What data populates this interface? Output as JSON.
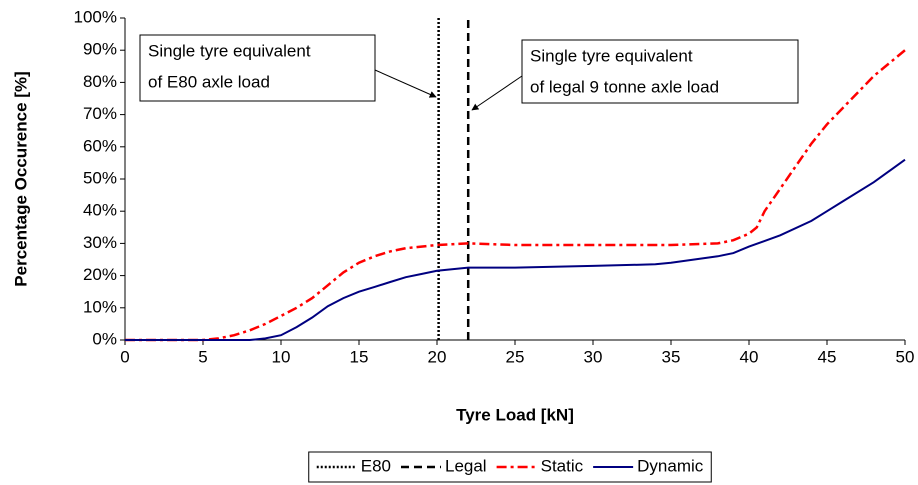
{
  "chart_data": {
    "type": "line",
    "xlabel": "Tyre Load [kN]",
    "ylabel": "Percentage Occurence [%]",
    "xlim": [
      0,
      50
    ],
    "xticks": [
      0,
      5,
      10,
      15,
      20,
      25,
      30,
      35,
      40,
      45,
      50
    ],
    "ylim": [
      0,
      100
    ],
    "yticks": [
      {
        "value": 0,
        "label": "0%"
      },
      {
        "value": 10,
        "label": "10%"
      },
      {
        "value": 20,
        "label": "20%"
      },
      {
        "value": 30,
        "label": "30%"
      },
      {
        "value": 40,
        "label": "40%"
      },
      {
        "value": 50,
        "label": "50%"
      },
      {
        "value": 60,
        "label": "60%"
      },
      {
        "value": 70,
        "label": "70%"
      },
      {
        "value": 80,
        "label": "80%"
      },
      {
        "value": 90,
        "label": "90%"
      },
      {
        "value": 100,
        "label": "100%"
      }
    ],
    "legend": "bottom",
    "series": [
      {
        "name": "E80",
        "color": "#000000",
        "line_style": "dotted",
        "x": [
          20.1,
          20.1
        ],
        "values": [
          0,
          100
        ]
      },
      {
        "name": "Legal",
        "color": "#000000",
        "line_style": "dashed",
        "x": [
          22,
          22
        ],
        "values": [
          0,
          100
        ]
      },
      {
        "name": "Static",
        "color": "#ff0000",
        "line_style": "dashdot",
        "x": [
          0,
          5,
          6,
          7,
          8,
          9,
          10,
          11,
          12,
          13,
          14,
          15,
          16,
          17,
          18,
          19,
          20,
          22,
          25,
          30,
          35,
          38,
          39,
          40,
          40.5,
          41,
          42,
          43,
          44,
          45,
          46,
          47,
          48,
          49,
          50
        ],
        "values": [
          0,
          0,
          0.5,
          1.5,
          3,
          5,
          7.5,
          10,
          13,
          17,
          21,
          24,
          26,
          27.5,
          28.5,
          29,
          29.5,
          30,
          29.5,
          29.5,
          29.5,
          30,
          31,
          33,
          35,
          40,
          47,
          54,
          61,
          67,
          72,
          77,
          82,
          86,
          90
        ]
      },
      {
        "name": "Dynamic",
        "color": "#000080",
        "line_style": "solid",
        "x": [
          0,
          5,
          8,
          9,
          10,
          11,
          12,
          13,
          14,
          15,
          16,
          17,
          18,
          19,
          20,
          22,
          25,
          30,
          34,
          35,
          38,
          39,
          40,
          42,
          44,
          45,
          46,
          48,
          50
        ],
        "values": [
          0,
          0,
          0,
          0.5,
          1.5,
          4,
          7,
          10.5,
          13,
          15,
          16.5,
          18,
          19.5,
          20.5,
          21.5,
          22.5,
          22.5,
          23,
          23.5,
          24,
          26,
          27,
          29,
          32.5,
          37,
          40,
          43,
          49,
          56
        ]
      }
    ],
    "annotations": [
      {
        "lines": [
          "Single tyre equivalent",
          "of E80 axle load"
        ]
      },
      {
        "lines": [
          "Single tyre equivalent",
          "of legal 9 tonne axle load"
        ]
      }
    ]
  }
}
